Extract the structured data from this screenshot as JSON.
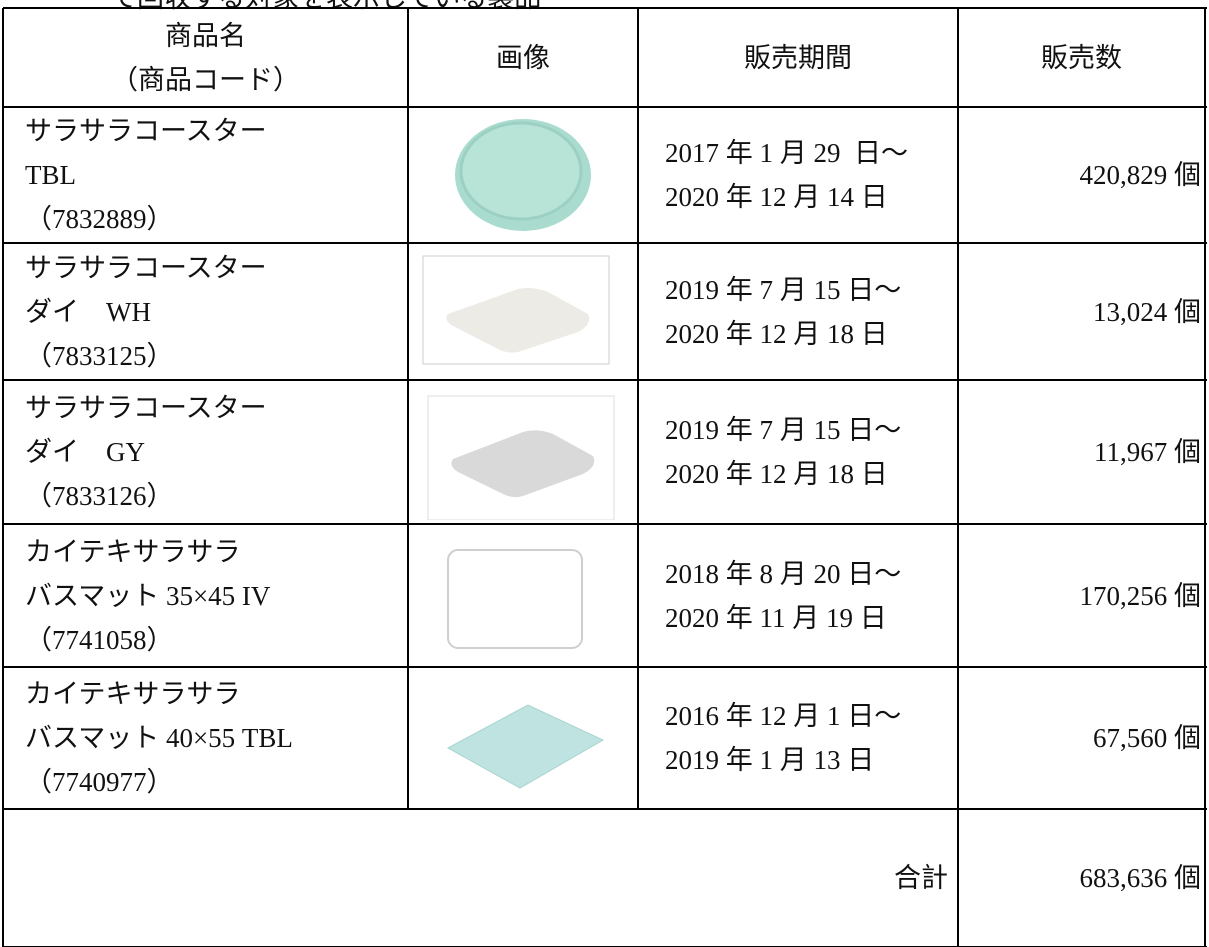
{
  "caption": "て回収する対象を表示している製品",
  "table": {
    "header": [
      [
        "商品名",
        "（商品コード）"
      ],
      "画像",
      "販売期間",
      "販売数"
    ],
    "rows": [
      {
        "name": [
          "サラサラコースター",
          "TBL",
          "（7832889）"
        ],
        "period": [
          "2017 年 1 月 29  日～",
          "2020 年 12 月 14 日"
        ],
        "quantity": "420,829 個"
      },
      {
        "name": [
          "サラサラコースター",
          "ダイ　WH",
          "（7833125）"
        ],
        "period": [
          "2019 年 7 月 15 日～",
          "2020 年 12 月 18 日"
        ],
        "quantity": "13,024 個"
      },
      {
        "name": [
          "サラサラコースター",
          "ダイ　GY",
          "（7833126）"
        ],
        "period": [
          "2019 年 7 月 15 日～",
          "2020 年 12 月 18 日"
        ],
        "quantity": "11,967 個"
      },
      {
        "name": [
          "カイテキサラサラ",
          "バスマット 35×45 IV",
          "（7741058）"
        ],
        "period": [
          "2018 年 8 月 20 日～",
          "2020 年 11 月 19 日"
        ],
        "quantity": "170,256 個"
      },
      {
        "name": [
          "カイテキサラサラ",
          "バスマット 40×55 TBL",
          "（7740977）"
        ],
        "period": [
          "2016 年 12 月 1 日～",
          "2019 年 1 月 13 日"
        ],
        "quantity": "67,560 個"
      }
    ],
    "total": {
      "label": "合計",
      "quantity": "683,636 個"
    }
  }
}
